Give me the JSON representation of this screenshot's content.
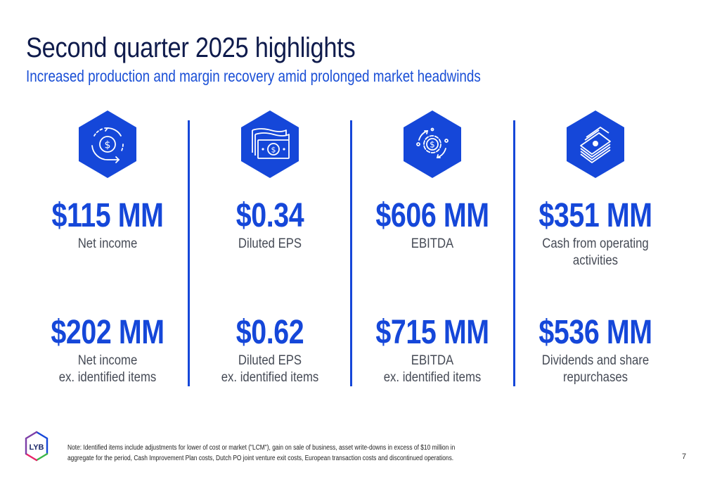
{
  "slide": {
    "title": "Second quarter 2025 highlights",
    "subtitle": "Increased production and margin recovery amid prolonged market headwinds",
    "accent_color": "#1547d9",
    "title_color": "#0f1b4c"
  },
  "columns": [
    {
      "icon": "refresh-dollar-icon",
      "metric1": {
        "value": "$115 MM",
        "label_lines": [
          "Net income"
        ]
      },
      "metric2": {
        "value": "$202 MM",
        "label_lines": [
          "Net income",
          "ex. identified items"
        ]
      }
    },
    {
      "icon": "banknotes-icon",
      "metric1": {
        "value": "$0.34",
        "label_lines": [
          "Diluted EPS"
        ]
      },
      "metric2": {
        "value": "$0.62",
        "label_lines": [
          "Diluted EPS",
          "ex. identified items"
        ]
      }
    },
    {
      "icon": "gear-dollar-cycle-icon",
      "metric1": {
        "value": "$606 MM",
        "label_lines": [
          "EBITDA"
        ]
      },
      "metric2": {
        "value": "$715 MM",
        "label_lines": [
          "EBITDA",
          "ex. identified items"
        ]
      }
    },
    {
      "icon": "cash-stack-icon",
      "metric1": {
        "value": "$351 MM",
        "label_lines": [
          "Cash from operating",
          "activities"
        ]
      },
      "metric2": {
        "value": "$536 MM",
        "label_lines": [
          "Dividends and share",
          "repurchases"
        ]
      }
    }
  ],
  "footer": {
    "logo_text": "LYB",
    "note": "Note: Identified items include adjustments for lower of cost or market (\"LCM\"), gain on sale of business, asset write-downs in excess of $10 million in aggregate for the period, Cash Improvement Plan costs, Dutch PO joint venture exit costs, European transaction costs and discontinued operations.",
    "page_number": "7"
  }
}
